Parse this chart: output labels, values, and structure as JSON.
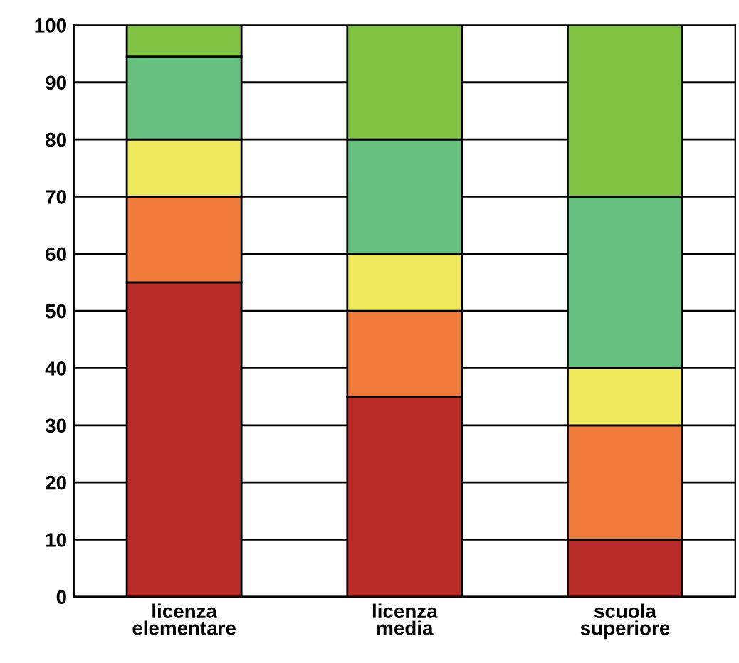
{
  "chart_data": {
    "type": "bar",
    "stacked": true,
    "categories": [
      "licenza\nelementare",
      "licenza\nmedia",
      "scuola\nsuperiore"
    ],
    "series": [
      {
        "color": "#b92b27",
        "values": [
          55,
          35,
          10
        ]
      },
      {
        "color": "#f07b3a",
        "values": [
          15,
          15,
          20
        ]
      },
      {
        "color": "#eee85a",
        "values": [
          10,
          10,
          10
        ]
      },
      {
        "color": "#66c07f",
        "values": [
          14.5,
          20,
          30
        ]
      },
      {
        "color": "#80c241",
        "values": [
          5.5,
          20,
          30
        ]
      }
    ],
    "ylim": [
      0,
      100
    ],
    "yticks": [
      0,
      10,
      20,
      30,
      40,
      50,
      60,
      70,
      80,
      90,
      100
    ],
    "grid": "y"
  }
}
